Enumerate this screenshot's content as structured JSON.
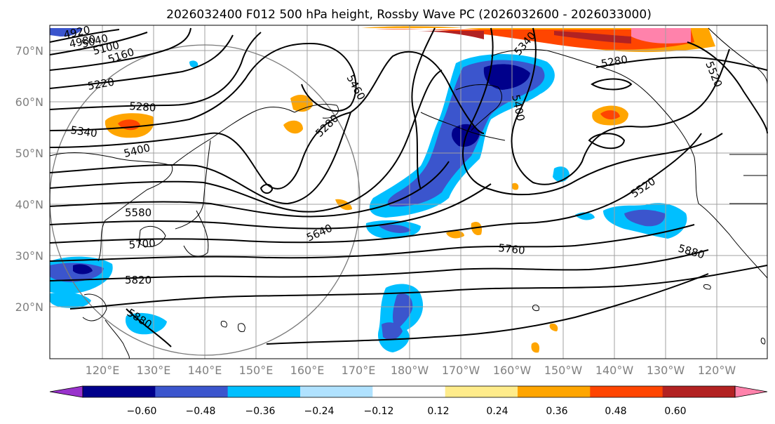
{
  "title": "2026032400 F012 500 hPa height, Rossby Wave PC (2026032600 - 2026033000)",
  "lat_labels": [
    "70°N",
    "60°N",
    "50°N",
    "40°N",
    "30°N",
    "20°N"
  ],
  "lon_labels": [
    "120°E",
    "130°E",
    "140°E",
    "150°E",
    "160°E",
    "170°E",
    "180°W",
    "170°W",
    "160°W",
    "150°W",
    "140°W",
    "130°W",
    "120°W"
  ],
  "contour_labels": [
    "4920",
    "4980",
    "5040",
    "5100",
    "5160",
    "5220",
    "5280",
    "5340",
    "5400",
    "5460",
    "5280",
    "5340",
    "5400",
    "5280",
    "5520",
    "5580",
    "5640",
    "5700",
    "5760",
    "5820",
    "5880",
    "5880",
    "5520"
  ],
  "colorbar": {
    "ticks": [
      "−0.60",
      "−0.48",
      "−0.36",
      "−0.24",
      "−0.12",
      "0.12",
      "0.24",
      "0.36",
      "0.48",
      "0.60"
    ],
    "colors": [
      "#9932cc",
      "#00008b",
      "#3b55cd",
      "#00bfff",
      "#b0e2ff",
      "#ffffff",
      "#ffec8b",
      "#ffa500",
      "#ff4500",
      "#b22222",
      "#ff82ab"
    ]
  }
}
